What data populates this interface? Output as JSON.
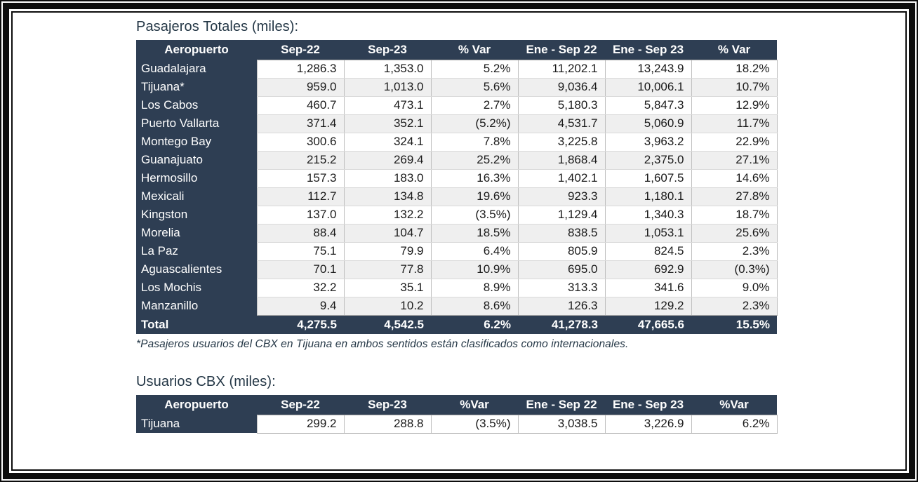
{
  "colors": {
    "header_bg": "#2e3e53",
    "header_text": "#ffffff",
    "row_bg": "#ffffff",
    "row_alt_bg": "#efefef",
    "title_text": "#243746",
    "frame": "#0d0d0d"
  },
  "table1": {
    "title": "Pasajeros Totales (miles):",
    "columns": [
      "Aeropuerto",
      "Sep-22",
      "Sep-23",
      "% Var",
      "Ene - Sep 22",
      "Ene - Sep 23",
      "% Var"
    ],
    "rows": [
      [
        "Guadalajara",
        "1,286.3",
        "1,353.0",
        "5.2%",
        "11,202.1",
        "13,243.9",
        "18.2%"
      ],
      [
        "Tijuana*",
        "959.0",
        "1,013.0",
        "5.6%",
        "9,036.4",
        "10,006.1",
        "10.7%"
      ],
      [
        "Los Cabos",
        "460.7",
        "473.1",
        "2.7%",
        "5,180.3",
        "5,847.3",
        "12.9%"
      ],
      [
        "Puerto Vallarta",
        "371.4",
        "352.1",
        "(5.2%)",
        "4,531.7",
        "5,060.9",
        "11.7%"
      ],
      [
        "Montego Bay",
        "300.6",
        "324.1",
        "7.8%",
        "3,225.8",
        "3,963.2",
        "22.9%"
      ],
      [
        "Guanajuato",
        "215.2",
        "269.4",
        "25.2%",
        "1,868.4",
        "2,375.0",
        "27.1%"
      ],
      [
        "Hermosillo",
        "157.3",
        "183.0",
        "16.3%",
        "1,402.1",
        "1,607.5",
        "14.6%"
      ],
      [
        "Mexicali",
        "112.7",
        "134.8",
        "19.6%",
        "923.3",
        "1,180.1",
        "27.8%"
      ],
      [
        "Kingston",
        "137.0",
        "132.2",
        "(3.5%)",
        "1,129.4",
        "1,340.3",
        "18.7%"
      ],
      [
        "Morelia",
        "88.4",
        "104.7",
        "18.5%",
        "838.5",
        "1,053.1",
        "25.6%"
      ],
      [
        "La Paz",
        "75.1",
        "79.9",
        "6.4%",
        "805.9",
        "824.5",
        "2.3%"
      ],
      [
        "Aguascalientes",
        "70.1",
        "77.8",
        "10.9%",
        "695.0",
        "692.9",
        "(0.3%)"
      ],
      [
        "Los Mochis",
        "32.2",
        "35.1",
        "8.9%",
        "313.3",
        "341.6",
        "9.0%"
      ],
      [
        "Manzanillo",
        "9.4",
        "10.2",
        "8.6%",
        "126.3",
        "129.2",
        "2.3%"
      ]
    ],
    "total": [
      "Total",
      "4,275.5",
      "4,542.5",
      "6.2%",
      "41,278.3",
      "47,665.6",
      "15.5%"
    ],
    "footnote": "*Pasajeros usuarios del CBX en Tijuana en ambos sentidos están clasificados como internacionales."
  },
  "table2": {
    "title": "Usuarios CBX (miles):",
    "columns": [
      "Aeropuerto",
      "Sep-22",
      "Sep-23",
      "%Var",
      "Ene - Sep 22",
      "Ene - Sep 23",
      "%Var"
    ],
    "rows": [
      [
        "Tijuana",
        "299.2",
        "288.8",
        "(3.5%)",
        "3,038.5",
        "3,226.9",
        "6.2%"
      ]
    ]
  }
}
